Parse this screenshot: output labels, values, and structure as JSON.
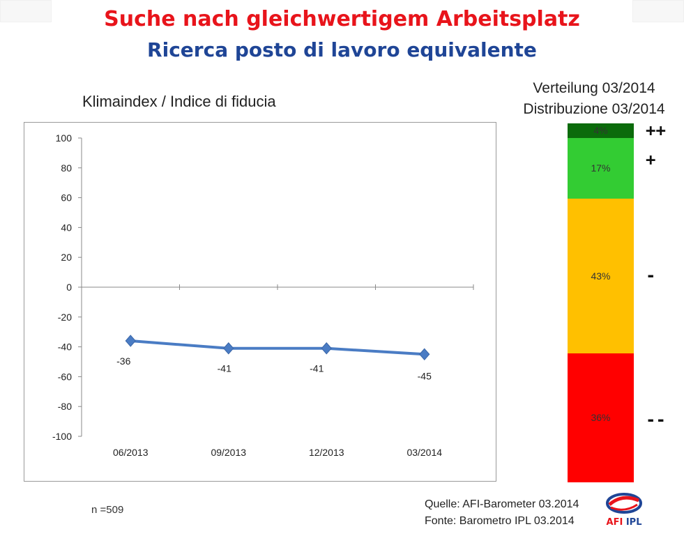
{
  "header": {
    "title_de": "Suche nach gleichwertigem Arbeitsplatz",
    "title_it": "Ricerca posto di lavoro equivalente"
  },
  "line_chart": {
    "title": "Klimaindex / Indice di fiducia"
  },
  "distribution": {
    "title_line1": "Verteilung 03/2014",
    "title_line2": "Distribuzione 03/2014",
    "segments": [
      {
        "value_label": "4%",
        "symbol": "++",
        "color": "#0b6b0b"
      },
      {
        "value_label": "17%",
        "symbol": "+",
        "color": "#33cc33"
      },
      {
        "value_label": "43%",
        "symbol": "-",
        "color": "#ffc000"
      },
      {
        "value_label": "36%",
        "symbol": "--",
        "color": "#ff0000"
      }
    ]
  },
  "footer": {
    "sample": "n =509",
    "source_de": "Quelle: AFI-Barometer 03.2014",
    "source_it": "Fonte: Barometro IPL 03.2014",
    "logo_text": "AFI IPL"
  },
  "chart_data": [
    {
      "type": "line",
      "title": "Klimaindex / Indice di fiducia",
      "categories": [
        "06/2013",
        "09/2013",
        "12/2013",
        "03/2014"
      ],
      "series": [
        {
          "values": [
            -36,
            -41,
            -41,
            -45
          ],
          "color": "#4a7cc4"
        }
      ],
      "data_labels": [
        "-36",
        "-41",
        "-41",
        "-45"
      ],
      "ylim": [
        -100,
        100
      ],
      "yticks": [
        "100",
        "80",
        "60",
        "40",
        "20",
        "0",
        "-20",
        "-40",
        "-60",
        "-80",
        "-100"
      ],
      "grid": false
    },
    {
      "type": "bar",
      "stacked": true,
      "title": "Verteilung 03/2014 / Distribuzione 03/2014",
      "categories": [
        "++",
        "+",
        "-",
        "--"
      ],
      "values": [
        4,
        17,
        43,
        36
      ],
      "colors": [
        "#0b6b0b",
        "#33cc33",
        "#ffc000",
        "#ff0000"
      ]
    }
  ]
}
